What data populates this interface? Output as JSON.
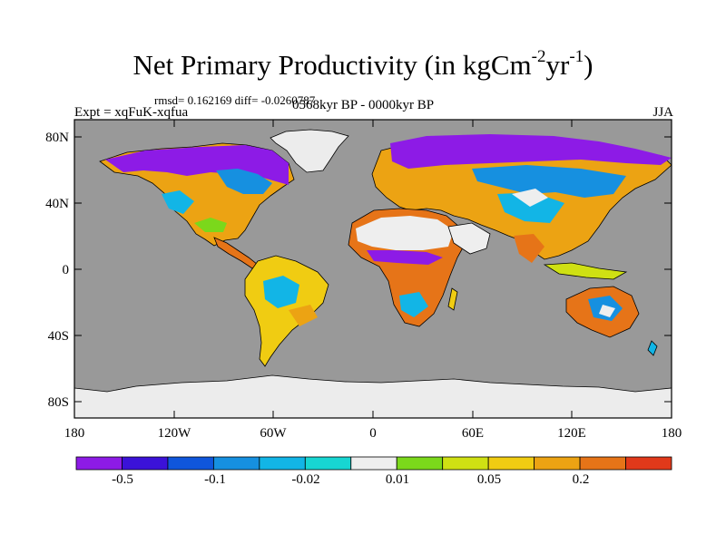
{
  "title": {
    "main": "Net Primary Productivity (in kgCm",
    "exp1": "-2",
    "mid": "yr",
    "exp2": "-1",
    "end": ")"
  },
  "stats": "rmsd= 0.162169 diff= -0.0260787",
  "left_label": "Expt = xqFuK-xqfua",
  "center_label": "0568kyr BP - 0000kyr BP",
  "right_label": "JJA",
  "map": {
    "projection": "cylindrical-equidistant",
    "lon_range": [
      -180,
      180
    ],
    "lat_range": [
      -90,
      90
    ],
    "ocean_color": "#999999",
    "y_ticks": [
      "80N",
      "40N",
      "0",
      "40S",
      "80S"
    ],
    "x_ticks": [
      "180",
      "120W",
      "60W",
      "0",
      "60E",
      "120E",
      "180"
    ]
  },
  "colorbar": {
    "colors": [
      "#8d1be6",
      "#3b12d8",
      "#0f56dc",
      "#1690e0",
      "#12b5e6",
      "#17d6d2",
      "#eeeeee",
      "#7bd81b",
      "#cfe013",
      "#f0cc12",
      "#eca313",
      "#e67418",
      "#e1391a"
    ],
    "labels": [
      "-0.5",
      "-0.1",
      "-0.02",
      "0.01",
      "0.05",
      "0.2"
    ]
  }
}
